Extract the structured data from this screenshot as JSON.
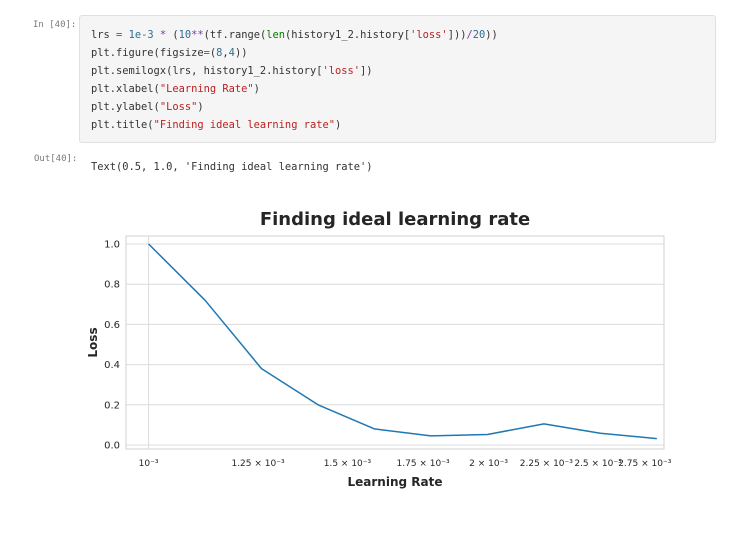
{
  "cell_in": {
    "prompt": "In [40]:",
    "code_lines": [
      [
        {
          "t": "lrs ",
          "c": ""
        },
        {
          "t": "=",
          "c": "op"
        },
        {
          "t": " ",
          "c": ""
        },
        {
          "t": "1e-3",
          "c": "num"
        },
        {
          "t": " ",
          "c": ""
        },
        {
          "t": "*",
          "c": "op"
        },
        {
          "t": " (",
          "c": ""
        },
        {
          "t": "10",
          "c": "num"
        },
        {
          "t": "**",
          "c": "op"
        },
        {
          "t": "(tf.range(",
          "c": ""
        },
        {
          "t": "len",
          "c": "bi"
        },
        {
          "t": "(history1_2.history[",
          "c": ""
        },
        {
          "t": "'loss'",
          "c": "str"
        },
        {
          "t": "]))",
          "c": ""
        },
        {
          "t": "/",
          "c": "op"
        },
        {
          "t": "20",
          "c": "num"
        },
        {
          "t": "))",
          "c": ""
        }
      ],
      [
        {
          "t": "plt.figure(figsize",
          "c": ""
        },
        {
          "t": "=",
          "c": "op"
        },
        {
          "t": "(",
          "c": ""
        },
        {
          "t": "8",
          "c": "num"
        },
        {
          "t": ",",
          "c": ""
        },
        {
          "t": "4",
          "c": "num"
        },
        {
          "t": "))",
          "c": ""
        }
      ],
      [
        {
          "t": "plt.semilogx(lrs, history1_2.history[",
          "c": ""
        },
        {
          "t": "'loss'",
          "c": "str"
        },
        {
          "t": "])",
          "c": ""
        }
      ],
      [
        {
          "t": "plt.xlabel(",
          "c": ""
        },
        {
          "t": "\"Learning Rate\"",
          "c": "str"
        },
        {
          "t": ")",
          "c": ""
        }
      ],
      [
        {
          "t": "plt.ylabel(",
          "c": ""
        },
        {
          "t": "\"Loss\"",
          "c": "str"
        },
        {
          "t": ")",
          "c": ""
        }
      ],
      [
        {
          "t": "plt.title(",
          "c": ""
        },
        {
          "t": "\"Finding ideal learning rate\"",
          "c": "str"
        },
        {
          "t": ")",
          "c": ""
        }
      ]
    ]
  },
  "cell_out": {
    "prompt": "Out[40]:",
    "text": "Text(0.5, 1.0, 'Finding ideal learning rate')"
  },
  "chart_data": {
    "type": "line",
    "title": "Finding ideal learning rate",
    "xlabel": "Learning Rate",
    "ylabel": "Loss",
    "xscale": "log",
    "xlim": [
      0.000955,
      0.00286
    ],
    "ylim": [
      -0.02,
      1.04
    ],
    "x": [
      0.001,
      0.00112202,
      0.00125893,
      0.00141254,
      0.00158489,
      0.00177828,
      0.00199526,
      0.00223872,
      0.00251189,
      0.00281838
    ],
    "series": [
      {
        "values": [
          1.0,
          0.72,
          0.38,
          0.2,
          0.08,
          0.045,
          0.052,
          0.105,
          0.058,
          0.032
        ],
        "color": "#1f77b4"
      }
    ],
    "yticks": [
      0.0,
      0.2,
      0.4,
      0.6,
      0.8,
      1.0
    ],
    "ytick_labels": [
      "0.0",
      "0.2",
      "0.4",
      "0.6",
      "0.8",
      "1.0"
    ],
    "xticks": [
      {
        "value": 0.001,
        "label": "10⁻³"
      },
      {
        "value": 0.00125,
        "label": "1.25 × 10⁻³"
      },
      {
        "value": 0.0015,
        "label": "1.5 × 10⁻³"
      },
      {
        "value": 0.00175,
        "label": "1.75 × 10⁻³"
      },
      {
        "value": 0.002,
        "label": "2 × 10⁻³"
      },
      {
        "value": 0.00225,
        "label": "2.25 × 10⁻³"
      },
      {
        "value": 0.0025,
        "label": "2.5 × 10⁻³"
      },
      {
        "value": 0.00275,
        "label": "2.75 × 10⁻³"
      }
    ],
    "grid": true
  }
}
